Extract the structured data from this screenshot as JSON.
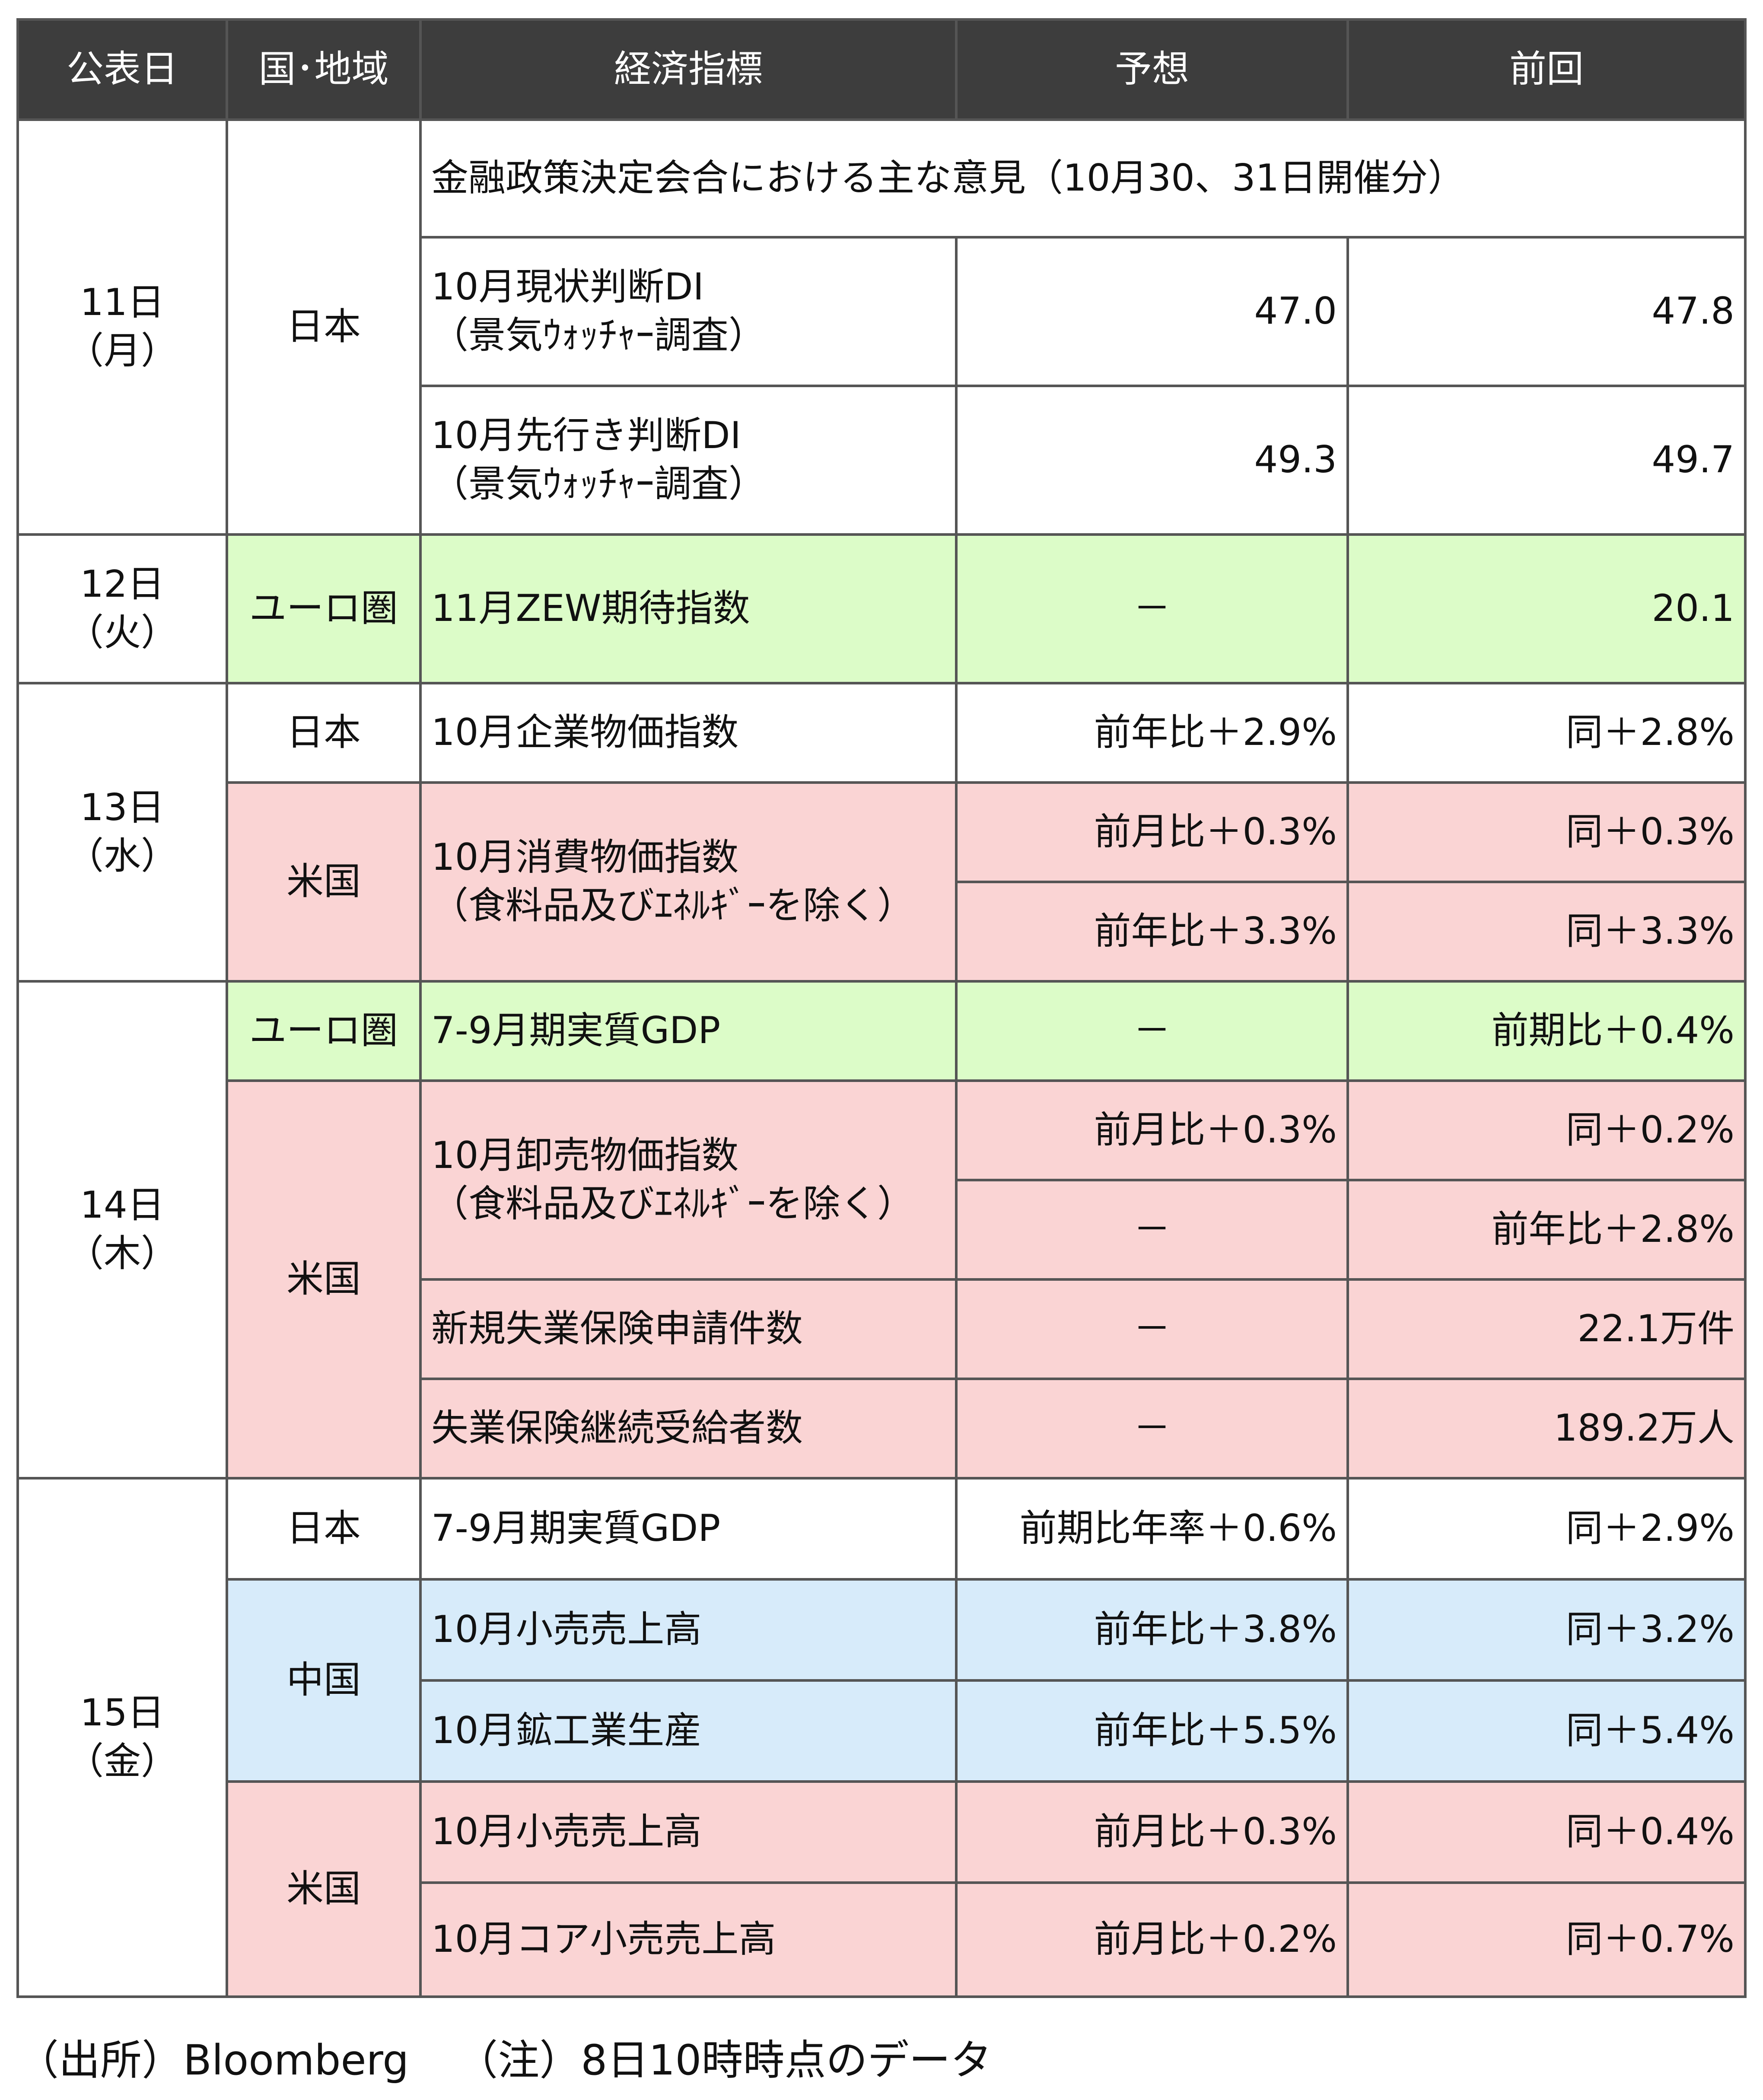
{
  "headers": {
    "date": "公表日",
    "region": "国･地域",
    "indicator": "経済指標",
    "forecast": "予想",
    "previous": "前回"
  },
  "days": {
    "d11": "11日",
    "d11w": "（月）",
    "d12": "12日",
    "d12w": "（火）",
    "d13": "13日",
    "d13w": "（水）",
    "d14": "14日",
    "d14w": "（木）",
    "d15": "15日",
    "d15w": "（金）"
  },
  "regions": {
    "japan": "日本",
    "euro": "ユーロ圏",
    "us": "米国",
    "china": "中国"
  },
  "rows": {
    "r1": {
      "indicator": "金融政策決定会合における主な意見（10月30、31日開催分）"
    },
    "r2": {
      "indicator": "10月現状判断DI",
      "indicator2": "（景気ｳｫｯﾁｬｰ調査）",
      "forecast": "47.0",
      "previous": "47.8"
    },
    "r3": {
      "indicator": "10月先行き判断DI",
      "indicator2": "（景気ｳｫｯﾁｬｰ調査）",
      "forecast": "49.3",
      "previous": "49.7"
    },
    "r4": {
      "indicator": "11月ZEW期待指数",
      "forecast": "－",
      "previous": "20.1"
    },
    "r5": {
      "indicator": "10月企業物価指数",
      "forecast": "前年比＋2.9%",
      "previous": "同＋2.8%"
    },
    "r6": {
      "indicator": "10月消費物価指数",
      "indicator2": "（食料品及びｴﾈﾙｷﾞｰを除く）",
      "forecast": "前月比＋0.3%",
      "previous": "同＋0.3%"
    },
    "r7": {
      "forecast": "前年比＋3.3%",
      "previous": "同＋3.3%"
    },
    "r8": {
      "indicator": "7-9月期実質GDP",
      "forecast": "－",
      "previous": "前期比＋0.4%"
    },
    "r9": {
      "indicator": "10月卸売物価指数",
      "indicator2": "（食料品及びｴﾈﾙｷﾞｰを除く）",
      "forecast": "前月比＋0.3%",
      "previous": "同＋0.2%"
    },
    "r10": {
      "forecast": "－",
      "previous": "前年比＋2.8%"
    },
    "r11": {
      "indicator": "新規失業保険申請件数",
      "forecast": "－",
      "previous": "22.1万件"
    },
    "r12": {
      "indicator": "失業保険継続受給者数",
      "forecast": "－",
      "previous": "189.2万人"
    },
    "r13": {
      "indicator": "7-9月期実質GDP",
      "forecast": "前期比年率＋0.6%",
      "previous": "同＋2.9%"
    },
    "r14": {
      "indicator": "10月小売売上高",
      "forecast": "前年比＋3.8%",
      "previous": "同＋3.2%"
    },
    "r15": {
      "indicator": "10月鉱工業生産",
      "forecast": "前年比＋5.5%",
      "previous": "同＋5.4%"
    },
    "r16": {
      "indicator": "10月小売売上高",
      "forecast": "前月比＋0.3%",
      "previous": "同＋0.4%"
    },
    "r17": {
      "indicator": "10月コア小売売上高",
      "forecast": "前月比＋0.2%",
      "previous": "同＋0.7%"
    }
  },
  "footer": {
    "source": "（出所）Bloomberg",
    "note": "（注）8日10時時点のデータ"
  },
  "colors": {
    "header_bg": "#3d3d3d",
    "euro_green": "#dcfcc8",
    "us_pink": "#fad4d4",
    "china_blue": "#d7ebfa",
    "border": "#555555"
  }
}
